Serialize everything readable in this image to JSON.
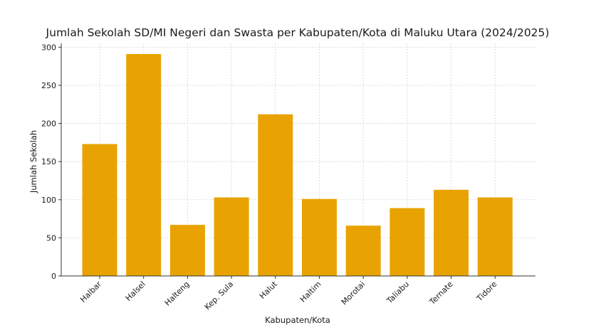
{
  "chart_data": {
    "type": "bar",
    "title": "Jumlah Sekolah SD/MI Negeri dan Swasta per Kabupaten/Kota di Maluku Utara (2024/2025)",
    "xlabel": "Kabupaten/Kota",
    "ylabel": "Jumlah Sekolah",
    "categories": [
      "Halbar",
      "Halsel",
      "Halteng",
      "Kep. Sula",
      "Halut",
      "Haltim",
      "Morotai",
      "Taliabu",
      "Ternate",
      "Tidore"
    ],
    "values": [
      173,
      291,
      67,
      103,
      212,
      101,
      66,
      89,
      113,
      103
    ],
    "ylim": [
      0,
      305
    ],
    "yticks": [
      0,
      50,
      100,
      150,
      200,
      250,
      300
    ],
    "grid": true,
    "legend": "none",
    "bar_color": "#E8A302"
  }
}
